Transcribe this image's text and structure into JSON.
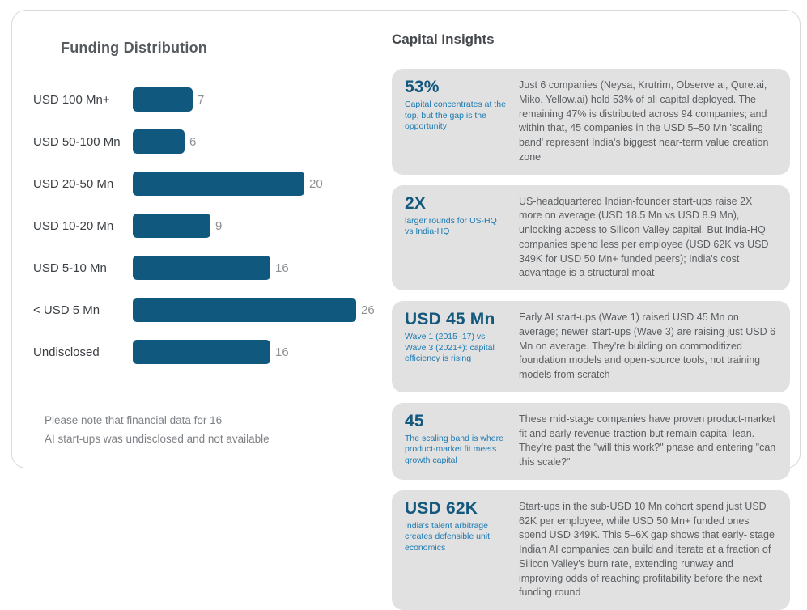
{
  "colors": {
    "bar": "#11587e",
    "stat_text": "#15587d",
    "caption_text": "#1b7ab2",
    "card_background": "#e1e1e1",
    "body_text": "#5b5e61"
  },
  "chart_data": {
    "type": "bar",
    "orientation": "horizontal",
    "title": "Funding Distribution",
    "categories": [
      "USD 100 Mn+",
      "USD 50-100 Mn",
      "USD 20-50 Mn",
      "USD 10-20 Mn",
      "USD 5-10 Mn",
      "< USD 5 Mn",
      "Undisclosed"
    ],
    "values": [
      7,
      6,
      20,
      9,
      16,
      26,
      16
    ],
    "xlim": [
      0,
      26
    ],
    "bar_color": "#11587e",
    "grid": false,
    "legend": "none",
    "note_line1": "Please note that financial data for 16",
    "note_line2": "AI start-ups was undisclosed and not available"
  },
  "insights": {
    "title": "Capital Insights",
    "cards": [
      {
        "stat": "53%",
        "caption": "Capital concentrates at the top, but the gap is the opportunity",
        "body": "Just 6 companies (Neysa, Krutrim, Observe.ai, Qure.ai, Miko, Yellow.ai) hold 53% of all capital deployed. The remaining 47% is distributed across 94 companies; and within that, 45 companies in the USD 5–50 Mn 'scaling band' represent India's biggest near-term value creation zone"
      },
      {
        "stat": "2X",
        "caption": "larger rounds for US-HQ vs India-HQ",
        "body": "US-headquartered Indian-founder start-ups raise 2X more on average (USD 18.5 Mn vs USD 8.9 Mn), unlocking access to Silicon Valley capital. But India-HQ companies spend less per employee (USD 62K vs USD 349K for USD 50 Mn+ funded peers); India's cost advantage is a structural moat"
      },
      {
        "stat": "USD 45 Mn",
        "caption": "Wave 1 (2015–17) vs Wave 3 (2021+): capital efficiency is rising",
        "body": "Early AI start-ups (Wave 1) raised USD 45 Mn on average; newer start-ups (Wave 3) are raising just USD 6 Mn on average. They're building on commoditized foundation models and open-source tools, not training models from scratch"
      },
      {
        "stat": "45",
        "caption": "The scaling band is where product-market fit meets growth capital",
        "body": "These mid-stage companies have proven product-market fit and early revenue traction but remain capital-lean. They're past the \"will this work?\" phase and entering \"can this scale?\""
      },
      {
        "stat": "USD 62K",
        "caption": "India's talent arbitrage creates defensible unit economics",
        "body": "Start-ups in the sub-USD 10 Mn cohort spend just USD 62K per employee, while USD 50 Mn+ funded ones spend USD 349K. This 5–6X gap shows that early- stage Indian AI companies can build and iterate at a fraction of Silicon Valley's burn rate, extending runway and improving odds of reaching profitability before the next funding round"
      }
    ]
  }
}
